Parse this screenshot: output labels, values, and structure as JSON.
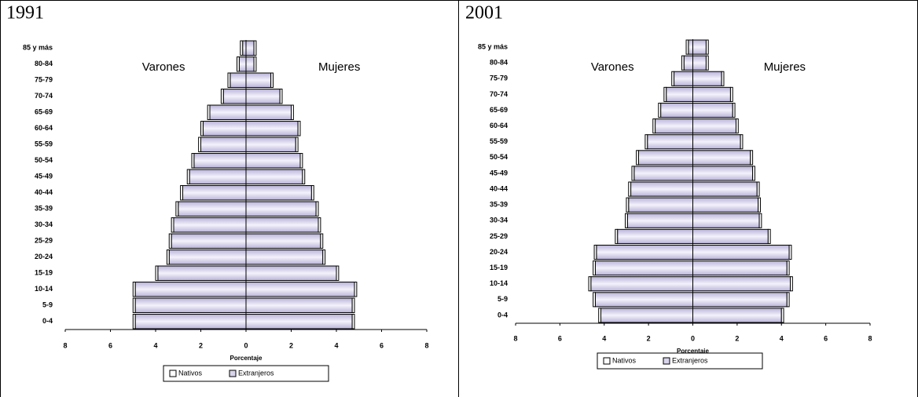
{
  "chart_data": [
    {
      "type": "pyramid",
      "title": "1991",
      "xlabel": "Porcentaje",
      "left_label": "Varones",
      "right_label": "Mujeres",
      "categories": [
        "0-4",
        "5-9",
        "10-14",
        "15-19",
        "20-24",
        "25-29",
        "30-34",
        "35-39",
        "40-44",
        "45-49",
        "50-54",
        "55-59",
        "60-64",
        "65-69",
        "70-74",
        "75-79",
        "80-84",
        "85 y más"
      ],
      "xlim": [
        -8,
        8
      ],
      "xticks": [
        {
          "value": -8,
          "label": "8"
        },
        {
          "value": -6,
          "label": "6"
        },
        {
          "value": -4,
          "label": "4"
        },
        {
          "value": -2,
          "label": "2"
        },
        0,
        2,
        4,
        6,
        8
      ],
      "series": [
        {
          "name": "Extranjeros",
          "color": "#d8d4ec",
          "varones": [
            4.9,
            4.9,
            4.9,
            3.9,
            3.4,
            3.3,
            3.2,
            3.0,
            2.8,
            2.5,
            2.3,
            2.0,
            1.9,
            1.6,
            1.0,
            0.7,
            0.3,
            0.15
          ],
          "mujeres": [
            4.7,
            4.7,
            4.8,
            4.0,
            3.4,
            3.3,
            3.2,
            3.1,
            2.9,
            2.5,
            2.4,
            2.2,
            2.3,
            2.0,
            1.5,
            1.1,
            0.35,
            0.35
          ]
        },
        {
          "name": "Nativos",
          "color": "#ffffff",
          "varones": [
            0.1,
            0.1,
            0.1,
            0.1,
            0.1,
            0.1,
            0.1,
            0.1,
            0.1,
            0.1,
            0.1,
            0.1,
            0.1,
            0.1,
            0.1,
            0.1,
            0.1,
            0.1
          ],
          "mujeres": [
            0.1,
            0.1,
            0.1,
            0.1,
            0.1,
            0.1,
            0.1,
            0.1,
            0.1,
            0.1,
            0.1,
            0.1,
            0.1,
            0.1,
            0.1,
            0.1,
            0.1,
            0.1
          ]
        }
      ]
    },
    {
      "type": "pyramid",
      "title": "2001",
      "xlabel": "Porcentaje",
      "left_label": "Varones",
      "right_label": "Mujeres",
      "categories": [
        "0-4",
        "5-9",
        "10-14",
        "15-19",
        "20-24",
        "25-29",
        "30-34",
        "35-39",
        "40-44",
        "45-49",
        "50-54",
        "55-59",
        "60-64",
        "65-69",
        "70-74",
        "75-79",
        "80-84",
        "85 y más"
      ],
      "xlim": [
        -8,
        8
      ],
      "xticks": [
        {
          "value": -8,
          "label": "8"
        },
        {
          "value": -6,
          "label": "6"
        },
        {
          "value": -4,
          "label": "4"
        },
        {
          "value": -2,
          "label": "2"
        },
        0,
        2,
        4,
        6,
        8
      ],
      "series": [
        {
          "name": "Extranjeros",
          "color": "#d8d4ec",
          "varones": [
            4.15,
            4.4,
            4.6,
            4.4,
            4.35,
            3.4,
            2.95,
            2.9,
            2.8,
            2.65,
            2.45,
            2.05,
            1.7,
            1.45,
            1.2,
            0.85,
            0.4,
            0.2
          ],
          "mujeres": [
            4.0,
            4.25,
            4.4,
            4.25,
            4.35,
            3.4,
            3.0,
            2.95,
            2.9,
            2.7,
            2.6,
            2.15,
            1.95,
            1.8,
            1.7,
            1.3,
            0.6,
            0.6
          ]
        },
        {
          "name": "Nativos",
          "color": "#ffffff",
          "varones": [
            0.1,
            0.1,
            0.1,
            0.1,
            0.1,
            0.1,
            0.1,
            0.1,
            0.1,
            0.1,
            0.1,
            0.1,
            0.1,
            0.1,
            0.1,
            0.1,
            0.1,
            0.1
          ],
          "mujeres": [
            0.1,
            0.1,
            0.1,
            0.1,
            0.1,
            0.1,
            0.1,
            0.1,
            0.1,
            0.1,
            0.1,
            0.1,
            0.1,
            0.1,
            0.1,
            0.1,
            0.1,
            0.1
          ]
        }
      ]
    }
  ]
}
